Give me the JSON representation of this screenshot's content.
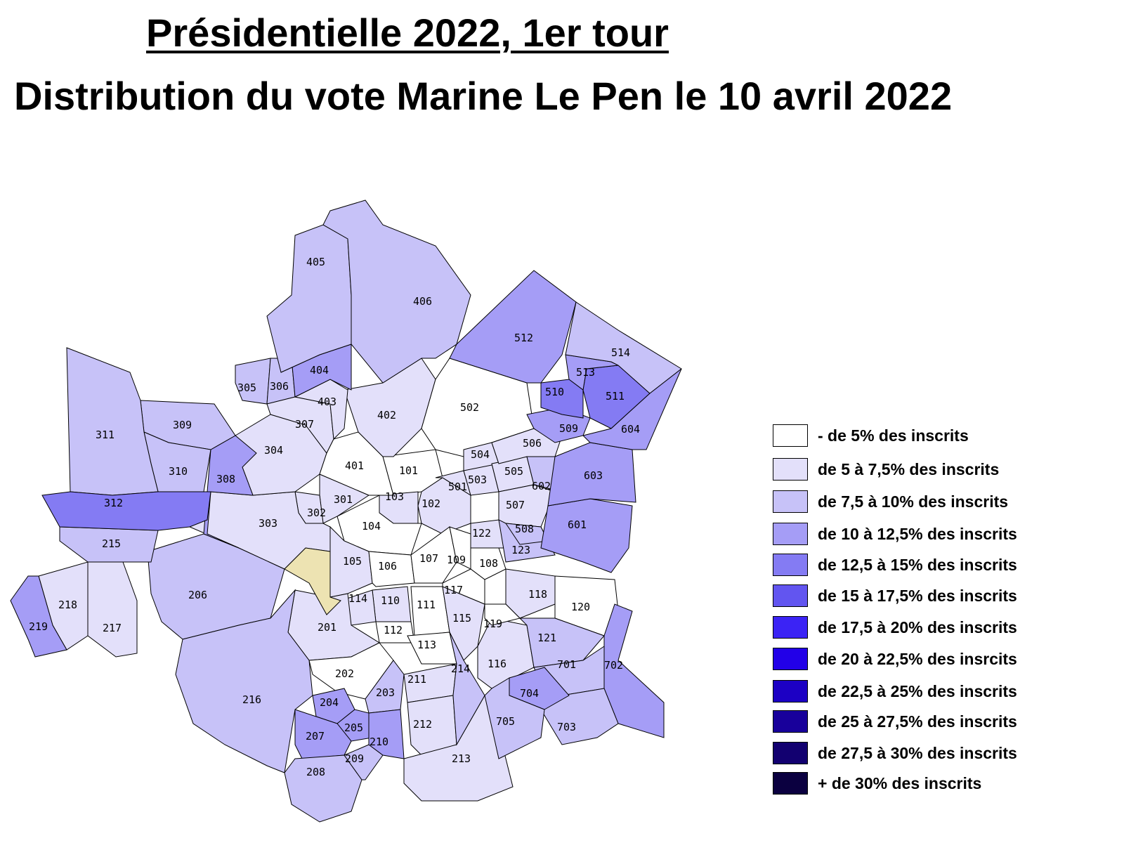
{
  "title": "Présidentielle 2022, 1er tour",
  "subtitle": "Distribution du vote Marine Le Pen le 10 avril 2022",
  "colors": {
    "c0": "#ffffff",
    "c1": "#e3e0fa",
    "c2": "#c7c2f8",
    "c3": "#a59df6",
    "c4": "#847bf3",
    "c5": "#6255f0",
    "c6": "#3b23f5",
    "c7": "#2200e8",
    "c8": "#1c00c4",
    "c9": "#18009b",
    "c10": "#120070",
    "c11": "#0b0040",
    "no_data": "#ede3b2",
    "border": "#000000"
  },
  "legend": [
    {
      "label": "- de  5% des inscrits",
      "color": "#ffffff"
    },
    {
      "label": "de 5 à 7,5% des inscrits",
      "color": "#e3e0fa"
    },
    {
      "label": "de 7,5 à 10% des inscrits",
      "color": "#c7c2f8"
    },
    {
      "label": "de 10 à 12,5% des inscrits",
      "color": "#a59df6"
    },
    {
      "label": "de 12,5 à 15% des inscrits",
      "color": "#847bf3"
    },
    {
      "label": "de 15 à 17,5% des inscrits",
      "color": "#6255f0"
    },
    {
      "label": "de 17,5 à 20% des inscrits",
      "color": "#3b23f5"
    },
    {
      "label": "de 20 à 22,5% des insrcits",
      "color": "#2200e8"
    },
    {
      "label": "de 22,5 à 25% des inscrits",
      "color": "#1c00c4"
    },
    {
      "label": "de 25 à 27,5% des inscrits",
      "color": "#18009b"
    },
    {
      "label": "de 27,5 à 30% des inscrits",
      "color": "#120070"
    },
    {
      "label": "+ de 30% des inscrits",
      "color": "#0b0040"
    }
  ],
  "districts": [
    {
      "id": "101",
      "class": 0
    },
    {
      "id": "102",
      "class": 1
    },
    {
      "id": "103",
      "class": 1
    },
    {
      "id": "104",
      "class": 0
    },
    {
      "id": "105",
      "class": 1
    },
    {
      "id": "106",
      "class": 0
    },
    {
      "id": "107",
      "class": 0
    },
    {
      "id": "108",
      "class": 0
    },
    {
      "id": "109",
      "class": 0
    },
    {
      "id": "110",
      "class": 1
    },
    {
      "id": "111",
      "class": 0
    },
    {
      "id": "112",
      "class": 0
    },
    {
      "id": "113",
      "class": 0
    },
    {
      "id": "114",
      "class": 1
    },
    {
      "id": "115",
      "class": 1
    },
    {
      "id": "116",
      "class": 1
    },
    {
      "id": "117",
      "class": 0
    },
    {
      "id": "118",
      "class": 1
    },
    {
      "id": "119",
      "class": 0
    },
    {
      "id": "120",
      "class": 0
    },
    {
      "id": "121",
      "class": 2
    },
    {
      "id": "122",
      "class": 1
    },
    {
      "id": "123",
      "class": 2
    },
    {
      "id": "201",
      "class": 1
    },
    {
      "id": "202",
      "class": 0
    },
    {
      "id": "203",
      "class": 2
    },
    {
      "id": "204",
      "class": 3
    },
    {
      "id": "205",
      "class": 3
    },
    {
      "id": "206",
      "class": 2
    },
    {
      "id": "207",
      "class": 3
    },
    {
      "id": "208",
      "class": 2
    },
    {
      "id": "209",
      "class": 2
    },
    {
      "id": "210",
      "class": 3
    },
    {
      "id": "211",
      "class": 1
    },
    {
      "id": "212",
      "class": 1
    },
    {
      "id": "213",
      "class": 1
    },
    {
      "id": "214",
      "class": 2
    },
    {
      "id": "215",
      "class": 2
    },
    {
      "id": "216",
      "class": 2
    },
    {
      "id": "217",
      "class": 1
    },
    {
      "id": "218",
      "class": 1
    },
    {
      "id": "219",
      "class": 3
    },
    {
      "id": "301",
      "class": 1
    },
    {
      "id": "302",
      "class": 1
    },
    {
      "id": "303",
      "class": 1
    },
    {
      "id": "304",
      "class": 1
    },
    {
      "id": "305",
      "class": 2
    },
    {
      "id": "306",
      "class": 2
    },
    {
      "id": "307",
      "class": 1
    },
    {
      "id": "308",
      "class": 3
    },
    {
      "id": "309",
      "class": 2
    },
    {
      "id": "310",
      "class": 2
    },
    {
      "id": "311",
      "class": 2
    },
    {
      "id": "312",
      "class": 4
    },
    {
      "id": "401",
      "class": 0
    },
    {
      "id": "402",
      "class": 1
    },
    {
      "id": "403",
      "class": 1
    },
    {
      "id": "404",
      "class": 3
    },
    {
      "id": "405",
      "class": 2
    },
    {
      "id": "406",
      "class": 2
    },
    {
      "id": "501",
      "class": 1
    },
    {
      "id": "502",
      "class": 0
    },
    {
      "id": "503",
      "class": 1
    },
    {
      "id": "504",
      "class": 1
    },
    {
      "id": "505",
      "class": 1
    },
    {
      "id": "506",
      "class": 1
    },
    {
      "id": "507",
      "class": 1
    },
    {
      "id": "508",
      "class": 2
    },
    {
      "id": "509",
      "class": 3
    },
    {
      "id": "510",
      "class": 4
    },
    {
      "id": "511",
      "class": 4
    },
    {
      "id": "512",
      "class": 3
    },
    {
      "id": "513",
      "class": 3
    },
    {
      "id": "514",
      "class": 2
    },
    {
      "id": "601",
      "class": 3
    },
    {
      "id": "602",
      "class": 2
    },
    {
      "id": "603",
      "class": 3
    },
    {
      "id": "604",
      "class": 3
    },
    {
      "id": "701",
      "class": 2
    },
    {
      "id": "702",
      "class": 3
    },
    {
      "id": "703",
      "class": 2
    },
    {
      "id": "704",
      "class": 3
    },
    {
      "id": "705",
      "class": 2
    }
  ]
}
